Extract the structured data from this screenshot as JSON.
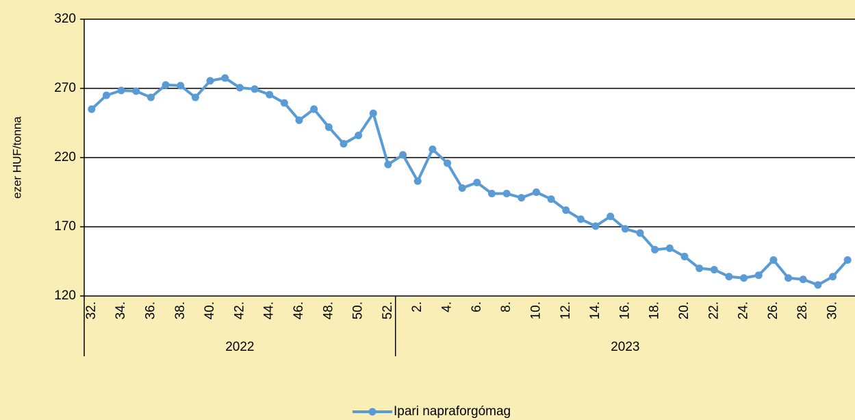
{
  "chart_data": {
    "type": "line",
    "y_label": "ezer HUF/tonna",
    "categories": [
      "32.",
      null,
      "34.",
      null,
      "36.",
      null,
      "38.",
      null,
      "40.",
      null,
      "42.",
      null,
      "44.",
      null,
      "46.",
      null,
      "48.",
      null,
      "50.",
      null,
      "52.",
      null,
      "2.",
      null,
      "4.",
      null,
      "6.",
      null,
      "8.",
      null,
      "10.",
      null,
      "12.",
      null,
      "14.",
      null,
      "16.",
      null,
      "18.",
      null,
      "20.",
      null,
      "22.",
      null,
      "24.",
      null,
      "26.",
      null,
      "28.",
      null,
      "30.",
      null
    ],
    "x_groups": [
      {
        "label": "2022",
        "span": 21
      },
      {
        "label": "2023",
        "span": 31
      }
    ],
    "series": [
      {
        "name": "Ipari napraforgómag",
        "color": "#5b9bd5",
        "values": [
          255,
          265,
          268.5,
          268,
          263.5,
          272.5,
          272,
          263.5,
          275.5,
          277.5,
          270.5,
          269.5,
          265.5,
          259.5,
          247,
          255,
          242,
          230,
          236,
          252,
          215,
          222,
          203,
          226,
          216,
          198,
          202,
          194,
          194,
          191,
          195,
          190,
          182,
          175.5,
          170.5,
          177.5,
          168.5,
          165.5,
          153.5,
          154.5,
          148.5,
          140,
          139,
          134,
          133,
          135,
          146,
          133,
          132,
          128,
          134,
          146
        ]
      }
    ],
    "ylim": [
      120,
      320
    ],
    "yticks": [
      120,
      170,
      220,
      270,
      320
    ],
    "grid": true,
    "legend": "bottom"
  }
}
